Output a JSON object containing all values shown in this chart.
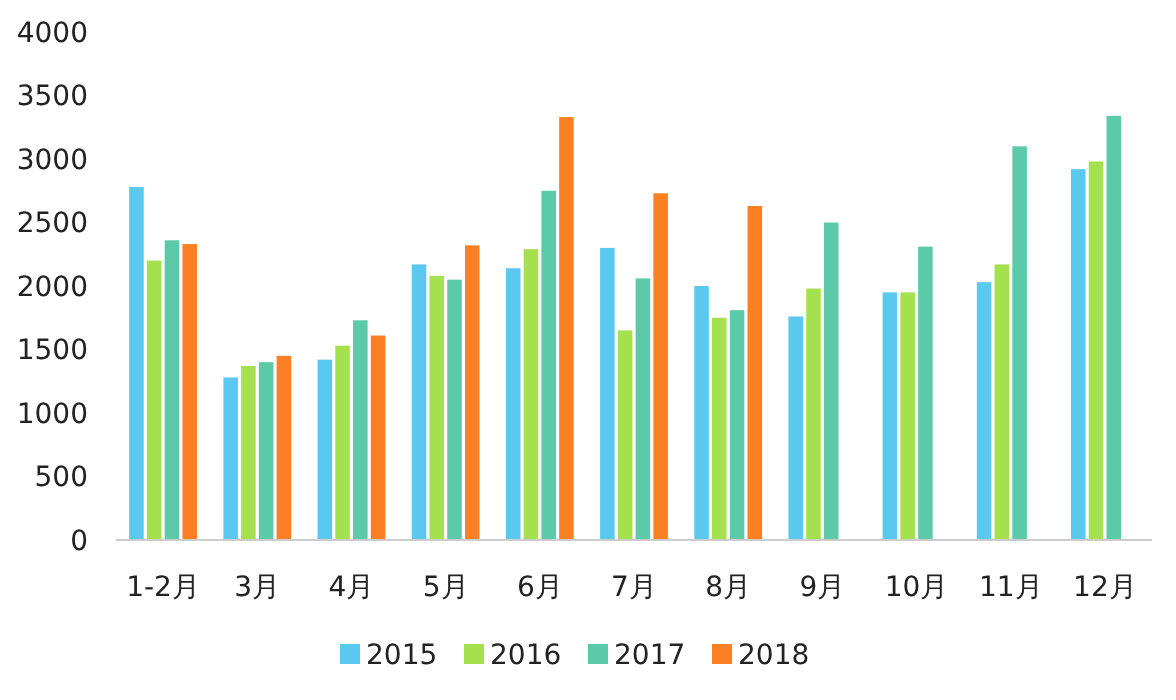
{
  "chart_data": {
    "type": "bar",
    "categories": [
      "1-2月",
      "3月",
      "4月",
      "5月",
      "6月",
      "7月",
      "8月",
      "9月",
      "10月",
      "11月",
      "12月"
    ],
    "series": [
      {
        "name": "2015",
        "color": "#5bc8ef",
        "values": [
          2780,
          1280,
          1420,
          2170,
          2140,
          2300,
          2000,
          1760,
          1950,
          2030,
          2920
        ]
      },
      {
        "name": "2016",
        "color": "#a5e14f",
        "values": [
          2200,
          1370,
          1530,
          2080,
          2290,
          1650,
          1750,
          1980,
          1950,
          2170,
          2980
        ]
      },
      {
        "name": "2017",
        "color": "#5ccaa8",
        "values": [
          2360,
          1400,
          1730,
          2050,
          2750,
          2060,
          1810,
          2500,
          2310,
          3100,
          3340
        ]
      },
      {
        "name": "2018",
        "color": "#fb7f23",
        "values": [
          2330,
          1450,
          1610,
          2320,
          3330,
          2730,
          2630,
          null,
          null,
          null,
          null
        ]
      }
    ],
    "ylim": [
      0,
      4000
    ],
    "yticks": [
      0,
      500,
      1000,
      1500,
      2000,
      2500,
      3000,
      3500,
      4000
    ],
    "grid": false,
    "legend": "bottom"
  }
}
